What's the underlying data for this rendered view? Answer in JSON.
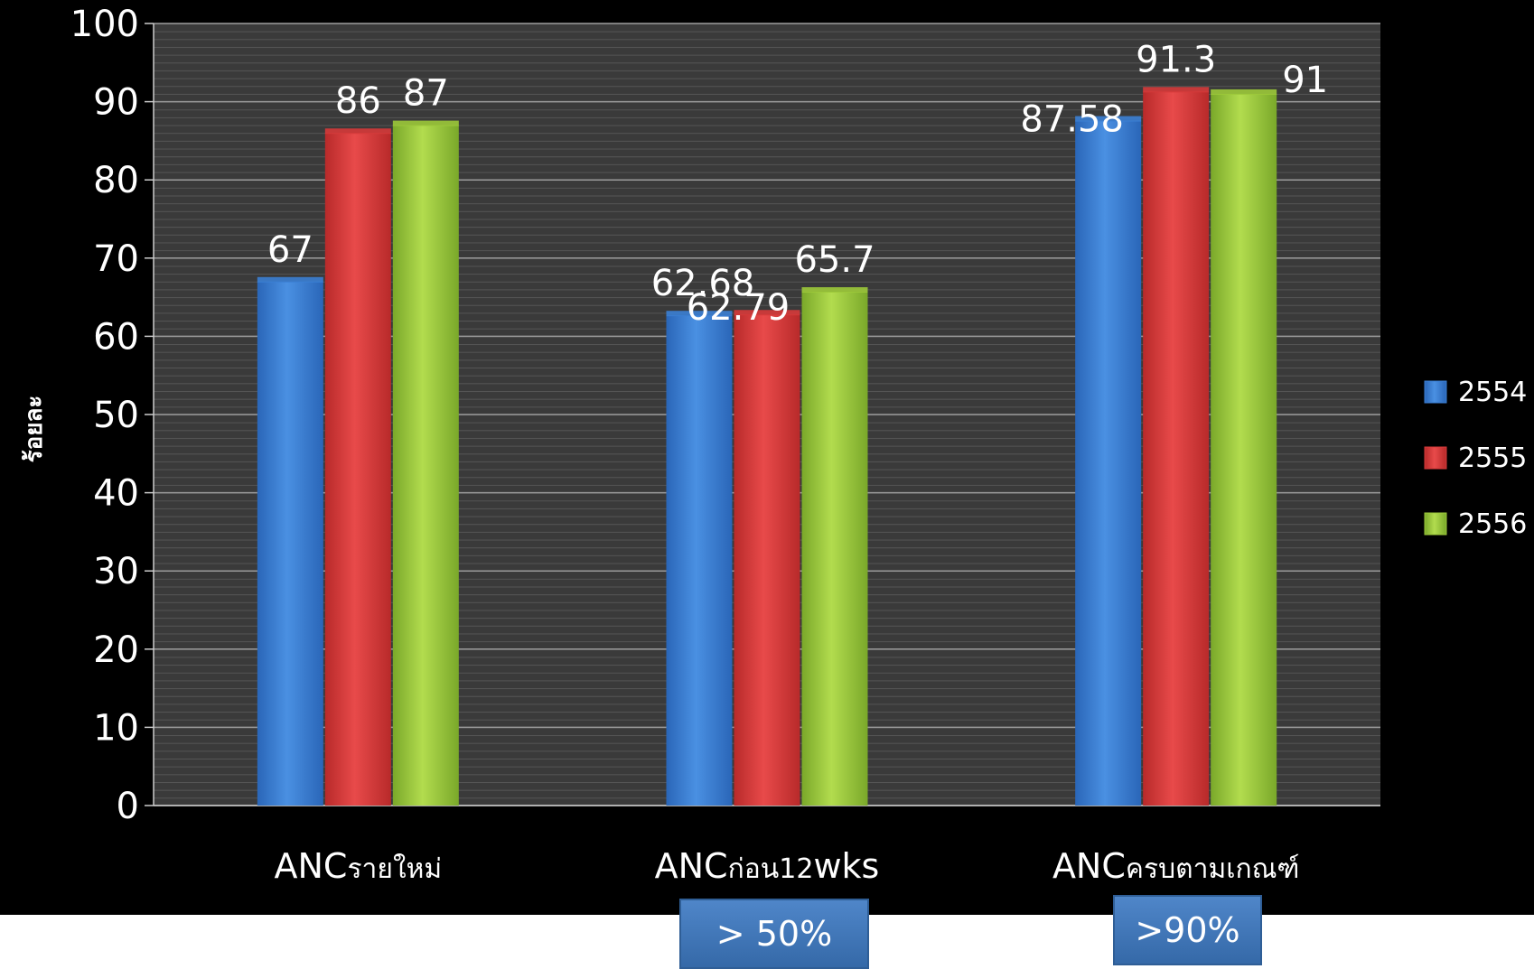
{
  "chart_data": {
    "type": "bar",
    "title": "",
    "xlabel": "",
    "ylabel": "ร้อยละ",
    "ylim": [
      0,
      100
    ],
    "yticks": [
      0,
      10,
      20,
      30,
      40,
      50,
      60,
      70,
      80,
      90,
      100
    ],
    "grid": true,
    "legend_position": "right",
    "categories": [
      {
        "prefix": "ANC",
        "suffix": "รายใหม่"
      },
      {
        "prefix": "ANC",
        "suffix": "ก่อน12",
        "suffix2": "wks"
      },
      {
        "prefix": "ANC",
        "suffix": "ครบตามเกณฑ์"
      }
    ],
    "series": [
      {
        "name": "2554",
        "color": "#3b7fd4",
        "values": [
          67,
          62.68,
          87.58
        ]
      },
      {
        "name": "2555",
        "color": "#d63a3a",
        "values": [
          86,
          62.79,
          91.3
        ]
      },
      {
        "name": "2556",
        "color": "#9cc93a",
        "values": [
          87,
          65.7,
          91
        ]
      }
    ]
  },
  "targets": [
    {
      "label": "> 50%"
    },
    {
      "label": ">90%"
    }
  ]
}
